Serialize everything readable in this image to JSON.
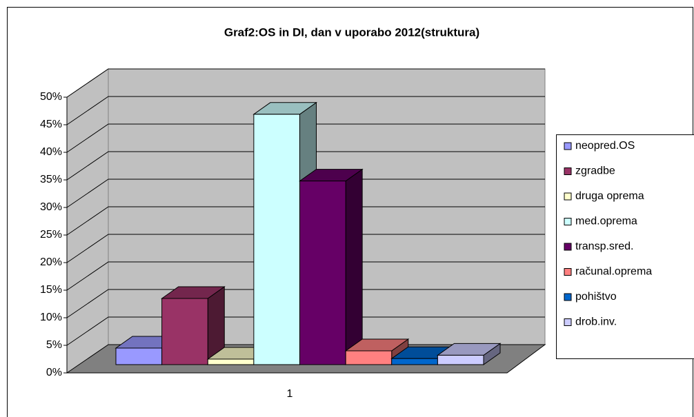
{
  "chart_data": {
    "type": "bar3d",
    "title": "Graf2:OS in DI, dan v uporabo 2012(struktura)",
    "categories": [
      "1"
    ],
    "series": [
      {
        "name": "neopred.OS",
        "color": "#9999ff",
        "values": [
          3
        ]
      },
      {
        "name": "zgradbe",
        "color": "#993366",
        "values": [
          12
        ]
      },
      {
        "name": "druga oprema",
        "color": "#ffffcc",
        "values": [
          1
        ]
      },
      {
        "name": "med.oprema",
        "color": "#ccffff",
        "values": [
          45.4
        ]
      },
      {
        "name": "transp.sred.",
        "color": "#660066",
        "values": [
          33.3
        ]
      },
      {
        "name": "računal.oprema",
        "color": "#ff8080",
        "values": [
          2.5
        ]
      },
      {
        "name": "pohištvo",
        "color": "#0066cc",
        "values": [
          1.1
        ]
      },
      {
        "name": "drob.inv.",
        "color": "#ccccff",
        "values": [
          1.7
        ]
      }
    ],
    "ylim": [
      0,
      50
    ],
    "yticks": [
      {
        "value": 0,
        "label": "0%"
      },
      {
        "value": 5,
        "label": "5%"
      },
      {
        "value": 10,
        "label": "10%"
      },
      {
        "value": 15,
        "label": "15%"
      },
      {
        "value": 20,
        "label": "20%"
      },
      {
        "value": 25,
        "label": "25%"
      },
      {
        "value": 30,
        "label": "30%"
      },
      {
        "value": 35,
        "label": "35%"
      },
      {
        "value": 40,
        "label": "40%"
      },
      {
        "value": 45,
        "label": "45%"
      },
      {
        "value": 50,
        "label": "50%"
      }
    ],
    "grid": true,
    "legend": "right"
  }
}
